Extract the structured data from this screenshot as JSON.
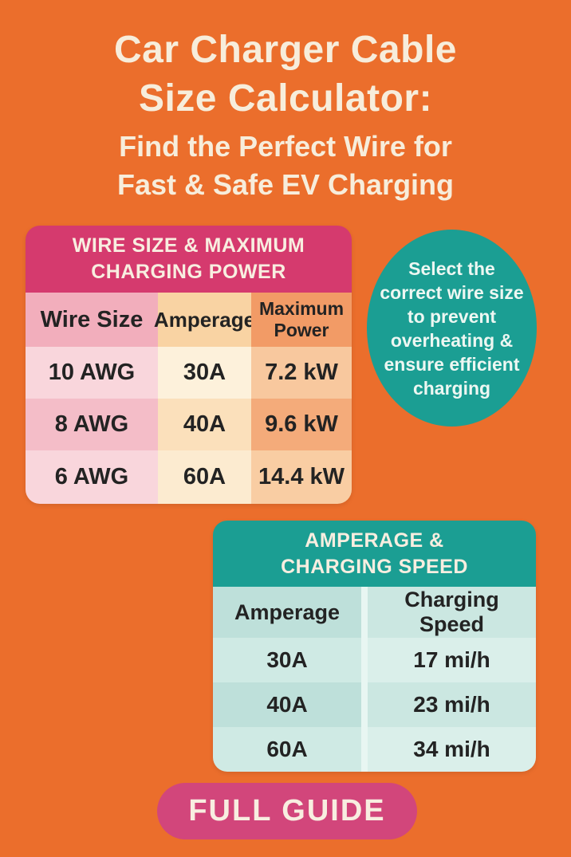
{
  "header": {
    "title_line1": "Car Charger Cable",
    "title_line2": "Size Calculator:",
    "subtitle_line1": "Find the Perfect Wire for",
    "subtitle_line2": "Fast & Safe EV Charging"
  },
  "wire_table": {
    "title": "WIRE SIZE & MAXIMUM CHARGING POWER",
    "columns": [
      "Wire Size",
      "Amperage",
      "Maximum Power"
    ],
    "rows": [
      [
        "10 AWG",
        "30A",
        "7.2 kW"
      ],
      [
        "8 AWG",
        "40A",
        "9.6 kW"
      ],
      [
        "6 AWG",
        "60A",
        "14.4 kW"
      ]
    ]
  },
  "callout": {
    "text": "Select the correct wire size to prevent overheating & ensure efficient charging"
  },
  "speed_table": {
    "title": "AMPERAGE & CHARGING SPEED",
    "columns": [
      "Amperage",
      "Charging Speed"
    ],
    "rows": [
      [
        "30A",
        "17 mi/h"
      ],
      [
        "40A",
        "23 mi/h"
      ],
      [
        "60A",
        "34 mi/h"
      ]
    ]
  },
  "cta": {
    "label": "FULL GUIDE"
  },
  "colors": {
    "bg_orange": "#EB6E2C",
    "cream": "#F7EDDB",
    "magenta": "#D53A6E",
    "teal": "#1B9E93",
    "button_pink": "#D2467B",
    "dark_text": "#232323",
    "head_text_cream": "#F8EEE0",
    "ellipse_text": "#EDF7F2",
    "pink_head": "#F2AEBC",
    "pink_light": "#F9D6DC",
    "pink_dark": "#F4BDC8",
    "peach_head": "#F9D3A3",
    "peach_light": "#FDF1DB",
    "peach_dark": "#FBE0BB",
    "peach_light2": "#FCEBD0",
    "orange_head": "#F29B66",
    "orange_light": "#F8C89E",
    "orange_dark": "#F4AB7A",
    "orange_light2": "#F9CDA3",
    "mint_head_l": "#BEE0DA",
    "mint_light_l": "#CFEAE4",
    "mint_head_r": "#CBE7E1",
    "mint_light_r": "#DAEFEA",
    "mint_sep": "#E8F6F2"
  }
}
